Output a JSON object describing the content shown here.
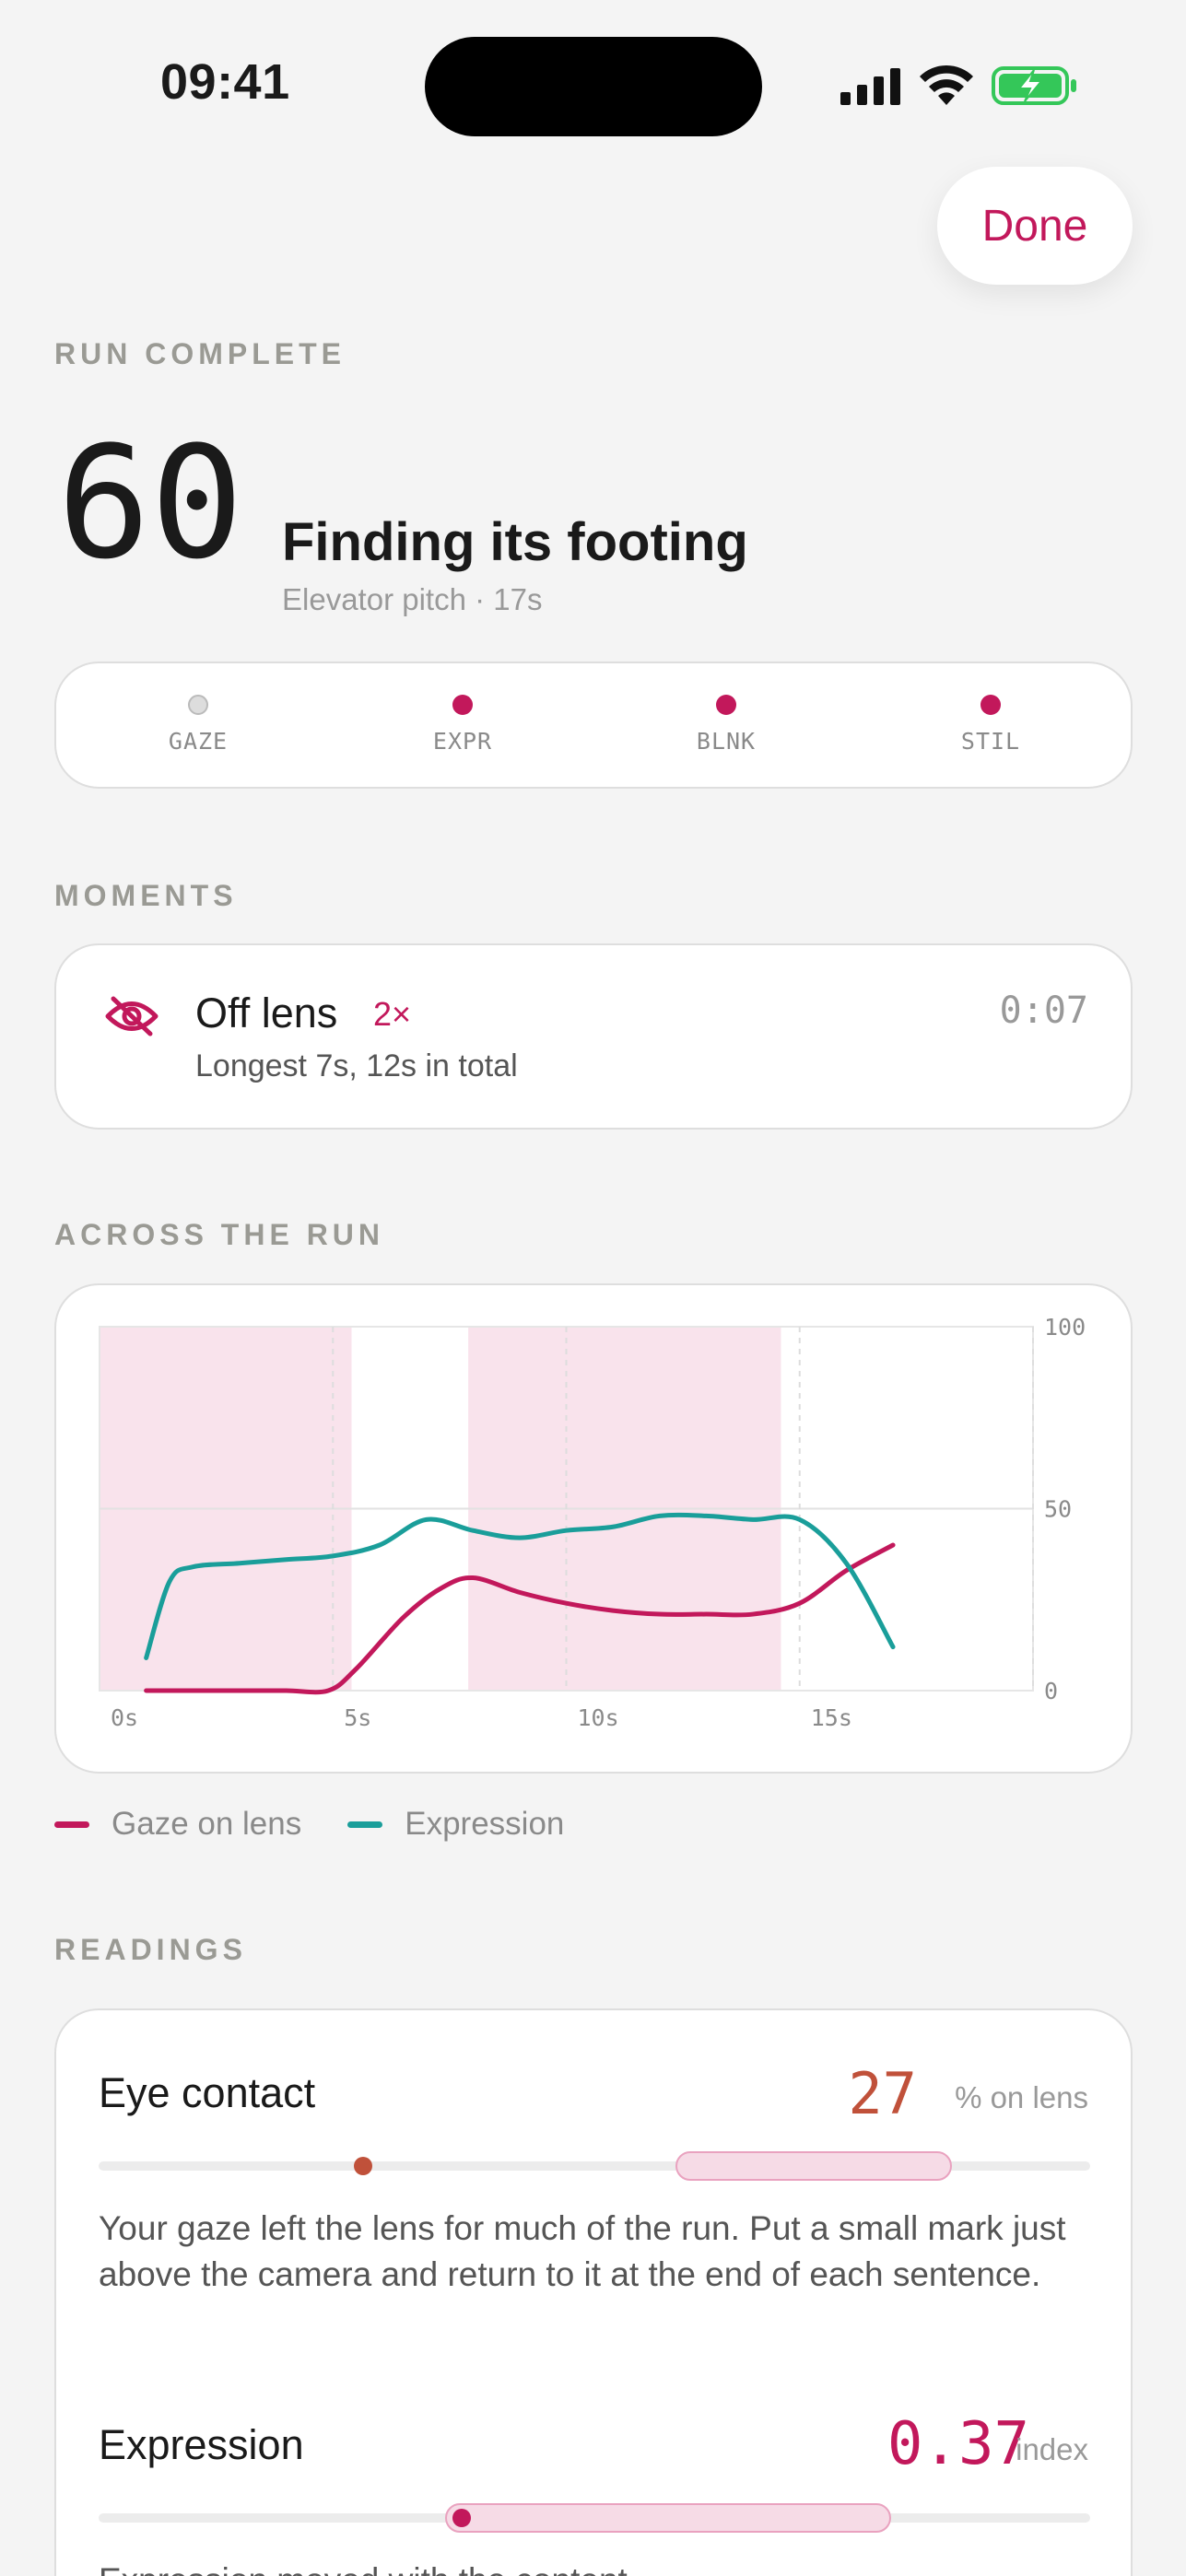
{
  "status": {
    "time": "09:41"
  },
  "header": {
    "done_label": "Done"
  },
  "summary": {
    "section_label": "RUN COMPLETE",
    "score": "60",
    "headline": "Finding its footing",
    "subline": "Elevator pitch · 17s",
    "indicators": [
      {
        "label": "GAZE",
        "active": false
      },
      {
        "label": "EXPR",
        "active": true
      },
      {
        "label": "BLNK",
        "active": true
      },
      {
        "label": "STIL",
        "active": true
      }
    ]
  },
  "moments": {
    "section_label": "MOMENTS",
    "item": {
      "title": "Off lens",
      "count": "2×",
      "detail": "Longest 7s, 12s in total",
      "time": "0:07",
      "icon": "eye-off-icon"
    }
  },
  "across": {
    "section_label": "ACROSS THE RUN"
  },
  "chart_data": {
    "type": "line",
    "xlim": [
      0,
      20
    ],
    "ylim": [
      0,
      100
    ],
    "x_ticks": [
      "0s",
      "5s",
      "10s",
      "15s"
    ],
    "x_tick_values": [
      0,
      5,
      10,
      15
    ],
    "y_ticks": [
      "100",
      "50",
      "0"
    ],
    "y_tick_values": [
      100,
      50,
      0
    ],
    "shaded_ranges": [
      [
        0,
        5.4
      ],
      [
        7.9,
        14.6
      ]
    ],
    "series": [
      {
        "name": "Gaze on lens",
        "color": "#c2185b",
        "x": [
          1,
          2,
          3,
          4,
          4.9,
          5.5,
          6.5,
          7.3,
          8,
          9,
          10,
          11,
          12,
          13,
          14,
          15,
          16,
          17
        ],
        "y": [
          0,
          0,
          0,
          0,
          0,
          6,
          20,
          28,
          31,
          27,
          24,
          22,
          21,
          21,
          21,
          24,
          33,
          40
        ]
      },
      {
        "name": "Expression",
        "color": "#1a9e9a",
        "x": [
          1,
          1.5,
          2,
          3,
          4,
          5,
          6,
          7,
          8,
          9,
          10,
          11,
          12,
          13,
          14,
          15,
          16,
          17
        ],
        "y": [
          9,
          30,
          34,
          35,
          36,
          37,
          40,
          47,
          44,
          42,
          44,
          45,
          48,
          48,
          47,
          47,
          35,
          12
        ]
      }
    ]
  },
  "legend": {
    "items": [
      {
        "label": "Gaze on lens",
        "color": "#c2185b"
      },
      {
        "label": "Expression",
        "color": "#1a9e9a"
      }
    ]
  },
  "readings": {
    "section_label": "READINGS",
    "items": [
      {
        "title": "Eye contact",
        "value": "27",
        "unit": "% on lens",
        "value_color": "#c0513a",
        "text": "Your gaze left the lens for much of the run. Put a small mark just above the camera and return to it at the end of each sentence."
      },
      {
        "title": "Expression",
        "value": "0.37",
        "unit": "index",
        "value_color": "#c2185b",
        "text": "Expression moved with the content."
      }
    ]
  }
}
